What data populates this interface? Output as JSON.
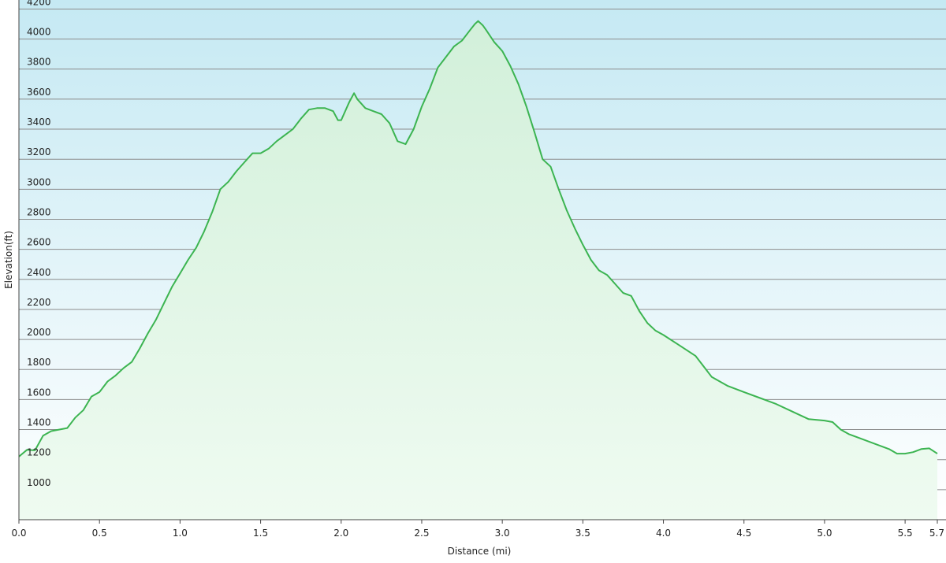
{
  "chart_data": {
    "type": "area",
    "xlabel": "Distance  (mi)",
    "ylabel": "Elevation(ft)",
    "xlim": [
      0.0,
      5.7
    ],
    "ylim": [
      800,
      4260
    ],
    "x_ticks": [
      0.0,
      0.5,
      1.0,
      1.5,
      2.0,
      2.5,
      3.0,
      3.5,
      4.0,
      4.5,
      5.0,
      5.5,
      5.7
    ],
    "x_tick_labels": [
      "0.0",
      "0.5",
      "1.0",
      "1.5",
      "2.0",
      "2.5",
      "3.0",
      "3.5",
      "4.0",
      "4.5",
      "5.0",
      "5.5",
      "5.7"
    ],
    "y_ticks": [
      1000,
      1200,
      1400,
      1600,
      1800,
      2000,
      2200,
      2400,
      2600,
      2800,
      3000,
      3200,
      3400,
      3600,
      3800,
      4000,
      4200
    ],
    "y_tick_labels": [
      "1000",
      "1200",
      "1400",
      "1600",
      "1800",
      "2000",
      "2200",
      "2400",
      "2600",
      "2800",
      "3000",
      "3200",
      "3400",
      "3600",
      "3800",
      "4000",
      "4200"
    ],
    "grid": true,
    "colors": {
      "line": "#3cb451",
      "fill_top": "#d2f0da",
      "fill_bottom": "#effbf1",
      "bg_top": "#c5e9f3",
      "bg_bottom": "#ffffff",
      "grid": "#8c8c8c"
    },
    "series": [
      {
        "x": [
          0.0,
          0.05,
          0.1,
          0.15,
          0.2,
          0.3,
          0.35,
          0.4,
          0.45,
          0.5,
          0.55,
          0.6,
          0.65,
          0.7,
          0.75,
          0.8,
          0.85,
          0.9,
          0.95,
          1.0,
          1.05,
          1.1,
          1.15,
          1.2,
          1.25,
          1.3,
          1.35,
          1.4,
          1.45,
          1.5,
          1.55,
          1.6,
          1.65,
          1.7,
          1.75,
          1.8,
          1.85,
          1.9,
          1.95,
          1.98,
          2.0,
          2.05,
          2.08,
          2.1,
          2.15,
          2.2,
          2.25,
          2.3,
          2.35,
          2.4,
          2.45,
          2.5,
          2.55,
          2.6,
          2.65,
          2.7,
          2.75,
          2.8,
          2.83,
          2.85,
          2.88,
          2.9,
          2.95,
          3.0,
          3.05,
          3.1,
          3.15,
          3.2,
          3.25,
          3.3,
          3.35,
          3.4,
          3.45,
          3.5,
          3.55,
          3.6,
          3.65,
          3.7,
          3.75,
          3.8,
          3.85,
          3.9,
          3.95,
          4.0,
          4.1,
          4.2,
          4.3,
          4.4,
          4.5,
          4.6,
          4.7,
          4.8,
          4.9,
          5.0,
          5.05,
          5.1,
          5.15,
          5.2,
          5.3,
          5.4,
          5.45,
          5.5,
          5.55,
          5.6,
          5.65,
          5.7
        ],
        "y": [
          1220,
          1265,
          1262,
          1360,
          1390,
          1410,
          1480,
          1530,
          1620,
          1650,
          1720,
          1760,
          1810,
          1850,
          1940,
          2040,
          2130,
          2240,
          2350,
          2440,
          2530,
          2610,
          2720,
          2850,
          3000,
          3050,
          3120,
          3180,
          3240,
          3240,
          3270,
          3320,
          3360,
          3400,
          3470,
          3530,
          3540,
          3540,
          3520,
          3460,
          3460,
          3580,
          3640,
          3600,
          3540,
          3520,
          3500,
          3440,
          3320,
          3300,
          3400,
          3550,
          3670,
          3810,
          3880,
          3950,
          3990,
          4060,
          4100,
          4120,
          4090,
          4060,
          3980,
          3920,
          3820,
          3700,
          3550,
          3380,
          3200,
          3150,
          3000,
          2860,
          2740,
          2630,
          2530,
          2460,
          2430,
          2370,
          2310,
          2290,
          2190,
          2110,
          2060,
          2030,
          1960,
          1890,
          1750,
          1690,
          1650,
          1610,
          1570,
          1520,
          1470,
          1460,
          1450,
          1400,
          1370,
          1350,
          1310,
          1270,
          1240,
          1240,
          1250,
          1270,
          1275,
          1240
        ]
      }
    ]
  }
}
